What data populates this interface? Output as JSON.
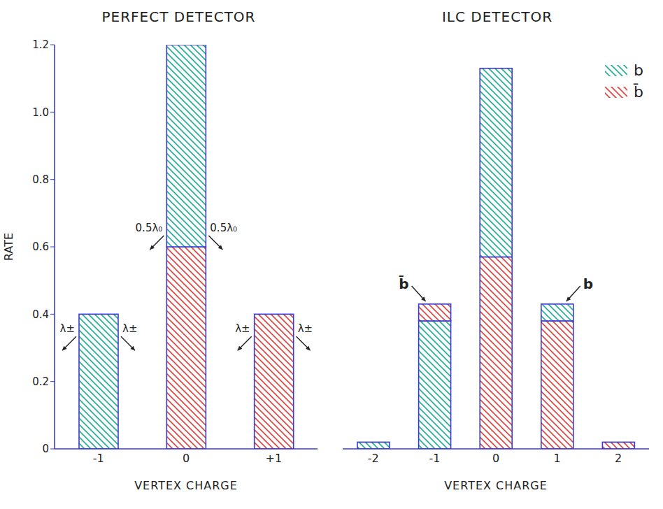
{
  "chart_data": [
    {
      "type": "bar",
      "title": "PERFECT DETECTOR",
      "x_label": "VERTEX CHARGE",
      "y_label": "RATE",
      "categories": [
        "-1",
        "0",
        "+1"
      ],
      "series": [
        {
          "name": "b",
          "color": "#22b09a",
          "values": [
            0.4,
            0.6,
            0
          ]
        },
        {
          "name": "b̄",
          "color": "#e0453f",
          "values": [
            0,
            0.6,
            0.4
          ]
        }
      ],
      "stacked": true,
      "grid": false,
      "ylim": [
        0,
        1.2
      ],
      "yticks": [
        0,
        0.2,
        0.4,
        0.6,
        0.8,
        {
          "value": 1,
          "label": "1.0"
        },
        1.2
      ],
      "annotations": [
        {
          "text": "λ±",
          "category": "-1"
        },
        {
          "text": "λ±",
          "category": "-1"
        },
        {
          "text": "0.5λ₀",
          "category": "0"
        },
        {
          "text": "0.5λ₀",
          "category": "0"
        },
        {
          "text": "λ±",
          "category": "+1"
        },
        {
          "text": "λ±",
          "category": "+1"
        }
      ]
    },
    {
      "type": "bar",
      "title": "ILC DETECTOR",
      "x_label": "VERTEX CHARGE",
      "categories": [
        "-2",
        "-1",
        "0",
        "1",
        "2"
      ],
      "series": [
        {
          "name": "b",
          "color": "#22b09a",
          "values": [
            0.02,
            0.38,
            0.56,
            0.05,
            0
          ]
        },
        {
          "name": "b̄",
          "color": "#e0453f",
          "values": [
            0,
            0.05,
            0.57,
            0.38,
            0.02
          ]
        }
      ],
      "stacked": true,
      "grid": false,
      "legend": "upper right",
      "tick_labels": "x",
      "ylim": [
        0,
        1.2
      ],
      "annotations": [
        {
          "text": "b̄",
          "category": "-1"
        },
        {
          "text": "b",
          "category": "1"
        }
      ]
    }
  ]
}
